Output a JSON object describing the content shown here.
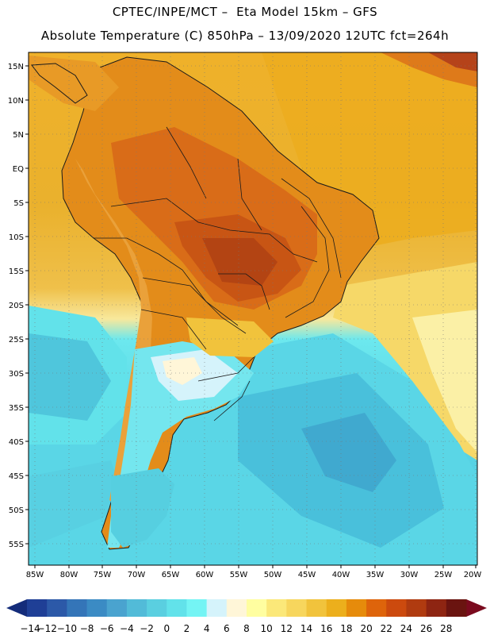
{
  "title_line1": "CPTEC/INPE/MCT –  Eta Model 15km – GFS",
  "title_line2": "Absolute Temperature (C) 850hPa – 13/09/2020 12UTC fct=264h",
  "lat_ticks": [
    "15N",
    "10N",
    "5N",
    "EQ",
    "5S",
    "10S",
    "15S",
    "20S",
    "25S",
    "30S",
    "35S",
    "40S",
    "45S",
    "50S",
    "55S"
  ],
  "lon_ticks": [
    "85W",
    "80W",
    "75W",
    "70W",
    "65W",
    "60W",
    "55W",
    "50W",
    "45W",
    "40W",
    "35W",
    "30W",
    "25W",
    "20W"
  ],
  "colorbar": {
    "labels": [
      "-14",
      "-12",
      "-10",
      "-8",
      "-6",
      "-4",
      "-2",
      "0",
      "2",
      "4",
      "6",
      "8",
      "10",
      "12",
      "14",
      "16",
      "18",
      "20",
      "22",
      "24",
      "26",
      "28"
    ],
    "colors": [
      "#1f3f96",
      "#2c59a8",
      "#3475b8",
      "#3b8bc4",
      "#4aa3cf",
      "#52bbd8",
      "#5acfe0",
      "#62e2ea",
      "#74f4f4",
      "#d5f3fb",
      "#fff6d8",
      "#fffea0",
      "#fbe879",
      "#f7d65d",
      "#f1c33c",
      "#ecaf1c",
      "#e68b0b",
      "#de640b",
      "#cc4a0e",
      "#b03b10",
      "#8e2512",
      "#6a1410"
    ],
    "low_extend_color": "#142c7a",
    "high_extend_color": "#7a0a1e"
  }
}
